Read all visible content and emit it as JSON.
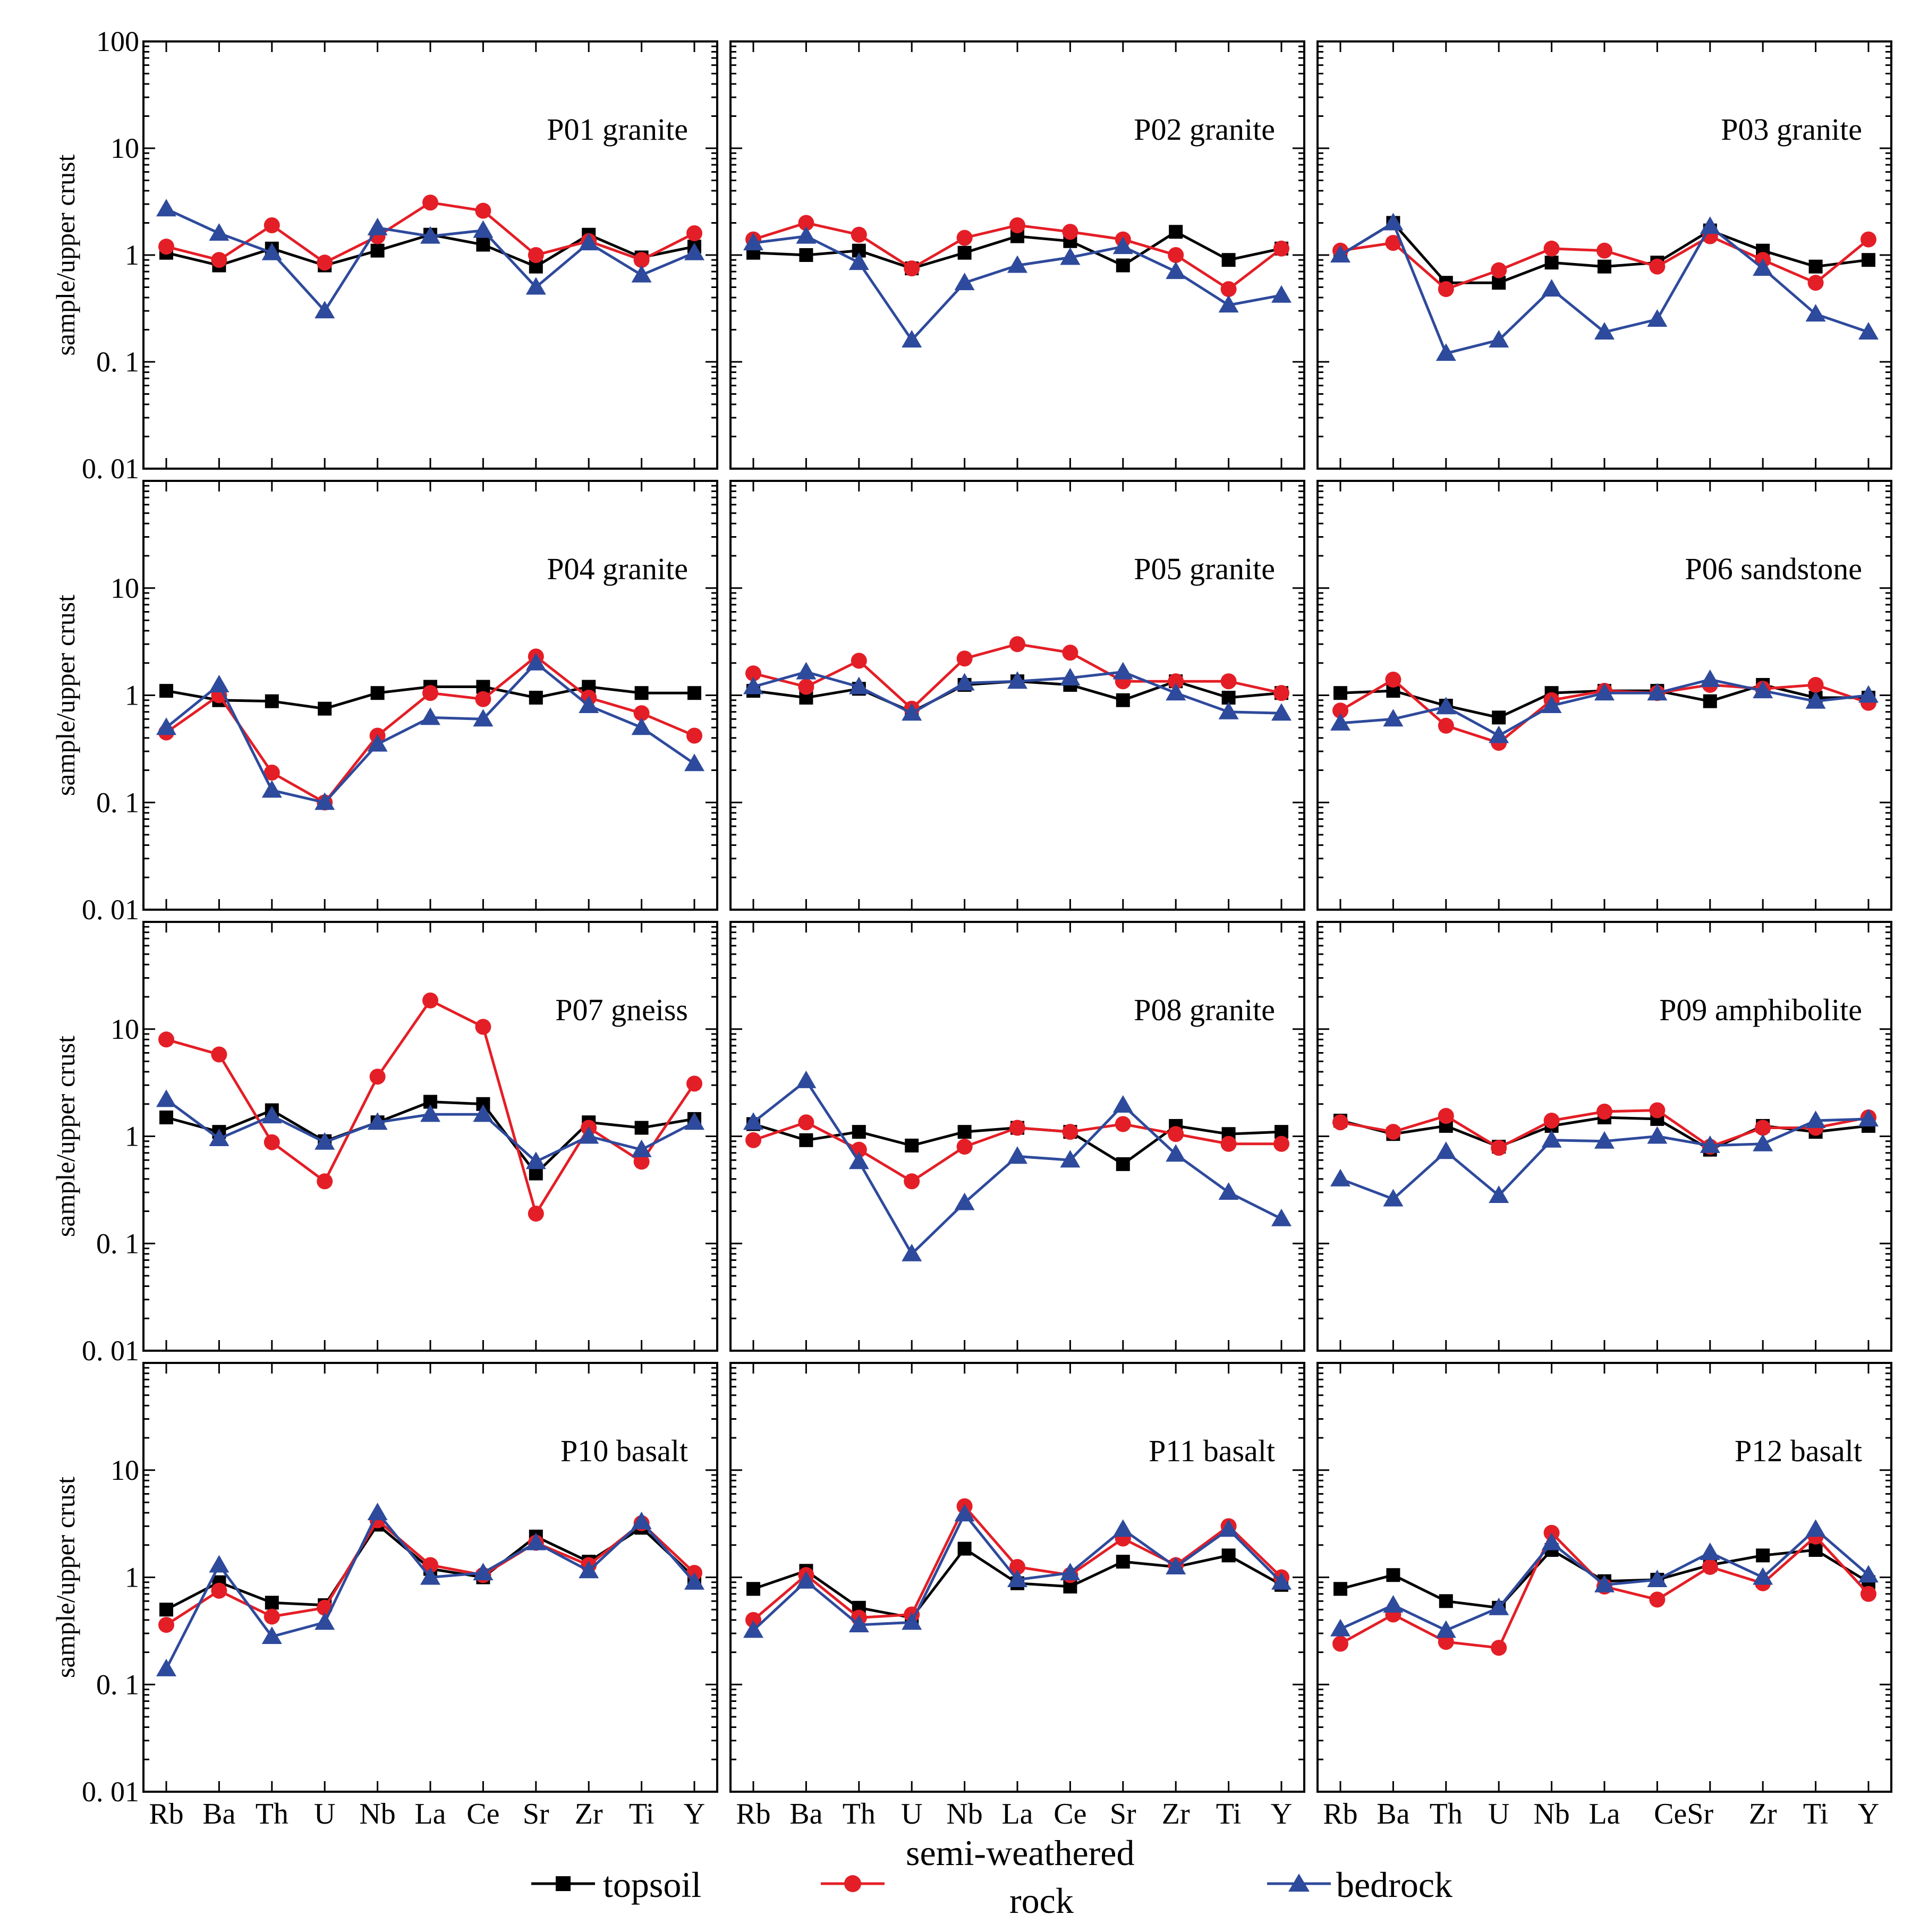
{
  "chart_data": {
    "type": "line",
    "y_scale": "log",
    "ylabel": "sample/upper crust",
    "yticks": [
      "100",
      "10",
      "1",
      "0. 1",
      "0. 01"
    ],
    "ylim": [
      0.01,
      100
    ],
    "categories": [
      "Rb",
      "Ba",
      "Th",
      "U",
      "Nb",
      "La",
      "Ce",
      "Sr",
      "Zr",
      "Ti",
      "Y"
    ],
    "categories_panel_12": [
      "Rb",
      "Ba",
      "Th",
      "U",
      "Nb",
      "La",
      "CeSr",
      "",
      "Zr",
      "Ti",
      "Y"
    ],
    "legend": [
      {
        "name": "topsoil",
        "color": "#000000",
        "marker": "square"
      },
      {
        "name": "semi-weathered rock",
        "line1": "semi-weathered",
        "line2": "rock",
        "color": "#e41e26",
        "marker": "circle"
      },
      {
        "name": "bedrock",
        "color": "#2e4a9c",
        "marker": "triangle"
      }
    ],
    "panels": [
      {
        "title": "P01 granite",
        "series": {
          "topsoil": [
            1.05,
            0.8,
            1.15,
            0.8,
            1.1,
            1.55,
            1.25,
            0.78,
            1.55,
            0.95,
            1.2
          ],
          "semi": [
            1.2,
            0.9,
            1.9,
            0.85,
            1.5,
            3.1,
            2.6,
            1.0,
            1.35,
            0.9,
            1.6
          ],
          "bedrock": [
            2.7,
            1.6,
            1.05,
            0.3,
            1.8,
            1.5,
            1.7,
            0.5,
            1.3,
            0.65,
            1.05
          ]
        }
      },
      {
        "title": "P02 granite",
        "series": {
          "topsoil": [
            1.05,
            1.0,
            1.1,
            0.75,
            1.05,
            1.5,
            1.35,
            0.8,
            1.65,
            0.9,
            1.15
          ],
          "semi": [
            1.4,
            2.0,
            1.55,
            0.75,
            1.45,
            1.9,
            1.65,
            1.4,
            1.0,
            0.48,
            1.15
          ],
          "bedrock": [
            1.3,
            1.5,
            0.85,
            0.16,
            0.55,
            0.8,
            0.95,
            1.2,
            0.7,
            0.34,
            0.42
          ]
        }
      },
      {
        "title": "P03 granite",
        "series": {
          "topsoil": [
            1.0,
            2.0,
            0.55,
            0.55,
            0.85,
            0.78,
            0.85,
            1.7,
            1.1,
            0.78,
            0.9
          ],
          "semi": [
            1.1,
            1.3,
            0.48,
            0.72,
            1.15,
            1.1,
            0.78,
            1.5,
            0.9,
            0.55,
            1.4
          ],
          "bedrock": [
            1.0,
            2.0,
            0.12,
            0.16,
            0.48,
            0.19,
            0.25,
            1.85,
            0.75,
            0.28,
            0.19
          ]
        }
      },
      {
        "title": "P04 granite",
        "series": {
          "topsoil": [
            1.1,
            0.9,
            0.88,
            0.75,
            1.05,
            1.2,
            1.2,
            0.95,
            1.2,
            1.05,
            1.05
          ],
          "semi": [
            0.45,
            1.0,
            0.19,
            0.1,
            0.42,
            1.05,
            0.92,
            2.3,
            0.95,
            0.68,
            0.42
          ],
          "bedrock": [
            0.5,
            1.25,
            0.13,
            0.1,
            0.35,
            0.62,
            0.6,
            2.0,
            0.8,
            0.5,
            0.23
          ]
        }
      },
      {
        "title": "P05 granite",
        "series": {
          "topsoil": [
            1.1,
            0.95,
            1.15,
            0.7,
            1.25,
            1.35,
            1.25,
            0.9,
            1.35,
            0.95,
            1.05
          ],
          "semi": [
            1.6,
            1.2,
            2.1,
            0.75,
            2.2,
            3.0,
            2.5,
            1.35,
            1.35,
            1.35,
            1.05
          ],
          "bedrock": [
            1.2,
            1.65,
            1.2,
            0.68,
            1.3,
            1.35,
            1.45,
            1.65,
            1.05,
            0.7,
            0.68
          ]
        }
      },
      {
        "title": "P06 sandstone",
        "series": {
          "topsoil": [
            1.05,
            1.1,
            0.8,
            0.62,
            1.05,
            1.1,
            1.1,
            0.88,
            1.25,
            0.95,
            0.95
          ],
          "semi": [
            0.72,
            1.4,
            0.52,
            0.36,
            0.9,
            1.1,
            1.05,
            1.25,
            1.15,
            1.25,
            0.85
          ],
          "bedrock": [
            0.55,
            0.6,
            0.78,
            0.42,
            0.8,
            1.05,
            1.05,
            1.4,
            1.1,
            0.88,
            1.0
          ]
        }
      },
      {
        "title": "P07 gneiss",
        "series": {
          "topsoil": [
            1.5,
            1.1,
            1.75,
            0.9,
            1.35,
            2.1,
            2.0,
            0.45,
            1.35,
            1.2,
            1.45
          ],
          "semi": [
            8.0,
            5.8,
            0.88,
            0.38,
            3.6,
            18.5,
            10.5,
            0.19,
            1.2,
            0.58,
            3.1
          ],
          "bedrock": [
            2.2,
            0.95,
            1.55,
            0.88,
            1.35,
            1.6,
            1.6,
            0.58,
            1.0,
            0.75,
            1.35
          ]
        }
      },
      {
        "title": "P08 granite",
        "series": {
          "topsoil": [
            1.3,
            0.92,
            1.1,
            0.82,
            1.1,
            1.2,
            1.1,
            0.55,
            1.25,
            1.05,
            1.1
          ],
          "semi": [
            0.92,
            1.35,
            0.75,
            0.38,
            0.8,
            1.2,
            1.1,
            1.3,
            1.05,
            0.85,
            0.85
          ],
          "bedrock": [
            1.35,
            3.3,
            0.58,
            0.08,
            0.24,
            0.65,
            0.6,
            1.95,
            0.68,
            0.3,
            0.17
          ]
        }
      },
      {
        "title": "P09 amphibolite",
        "series": {
          "topsoil": [
            1.4,
            1.05,
            1.25,
            0.8,
            1.25,
            1.5,
            1.45,
            0.75,
            1.25,
            1.1,
            1.25
          ],
          "semi": [
            1.35,
            1.1,
            1.55,
            0.78,
            1.4,
            1.7,
            1.75,
            0.8,
            1.2,
            1.2,
            1.5
          ],
          "bedrock": [
            0.4,
            0.26,
            0.72,
            0.28,
            0.92,
            0.9,
            1.0,
            0.82,
            0.85,
            1.4,
            1.45
          ]
        }
      },
      {
        "title": "P10 basalt",
        "series": {
          "topsoil": [
            0.5,
            0.9,
            0.58,
            0.55,
            3.1,
            1.2,
            1.0,
            2.4,
            1.4,
            2.9,
            1.0
          ],
          "semi": [
            0.36,
            0.75,
            0.43,
            0.52,
            3.4,
            1.3,
            1.05,
            2.1,
            1.3,
            3.2,
            1.1
          ],
          "bedrock": [
            0.14,
            1.3,
            0.28,
            0.38,
            4.0,
            1.0,
            1.1,
            2.1,
            1.15,
            3.3,
            0.9
          ]
        }
      },
      {
        "title": "P11 basalt",
        "series": {
          "topsoil": [
            0.78,
            1.15,
            0.52,
            0.42,
            1.85,
            0.88,
            0.82,
            1.4,
            1.25,
            1.6,
            0.85
          ],
          "semi": [
            0.4,
            1.05,
            0.42,
            0.45,
            4.6,
            1.25,
            1.05,
            2.3,
            1.3,
            3.0,
            1.0
          ],
          "bedrock": [
            0.32,
            0.92,
            0.36,
            0.38,
            3.9,
            0.95,
            1.1,
            2.8,
            1.25,
            2.8,
            0.9
          ]
        }
      },
      {
        "title": "P12 basalt",
        "series": {
          "topsoil": [
            0.78,
            1.05,
            0.6,
            0.52,
            1.8,
            0.92,
            0.95,
            1.3,
            1.6,
            1.8,
            0.9
          ],
          "semi": [
            0.24,
            0.45,
            0.25,
            0.22,
            2.6,
            0.82,
            0.62,
            1.25,
            0.88,
            2.4,
            0.7
          ],
          "bedrock": [
            0.33,
            0.55,
            0.32,
            0.52,
            2.1,
            0.85,
            0.95,
            1.7,
            1.0,
            2.8,
            1.05
          ]
        }
      }
    ]
  }
}
